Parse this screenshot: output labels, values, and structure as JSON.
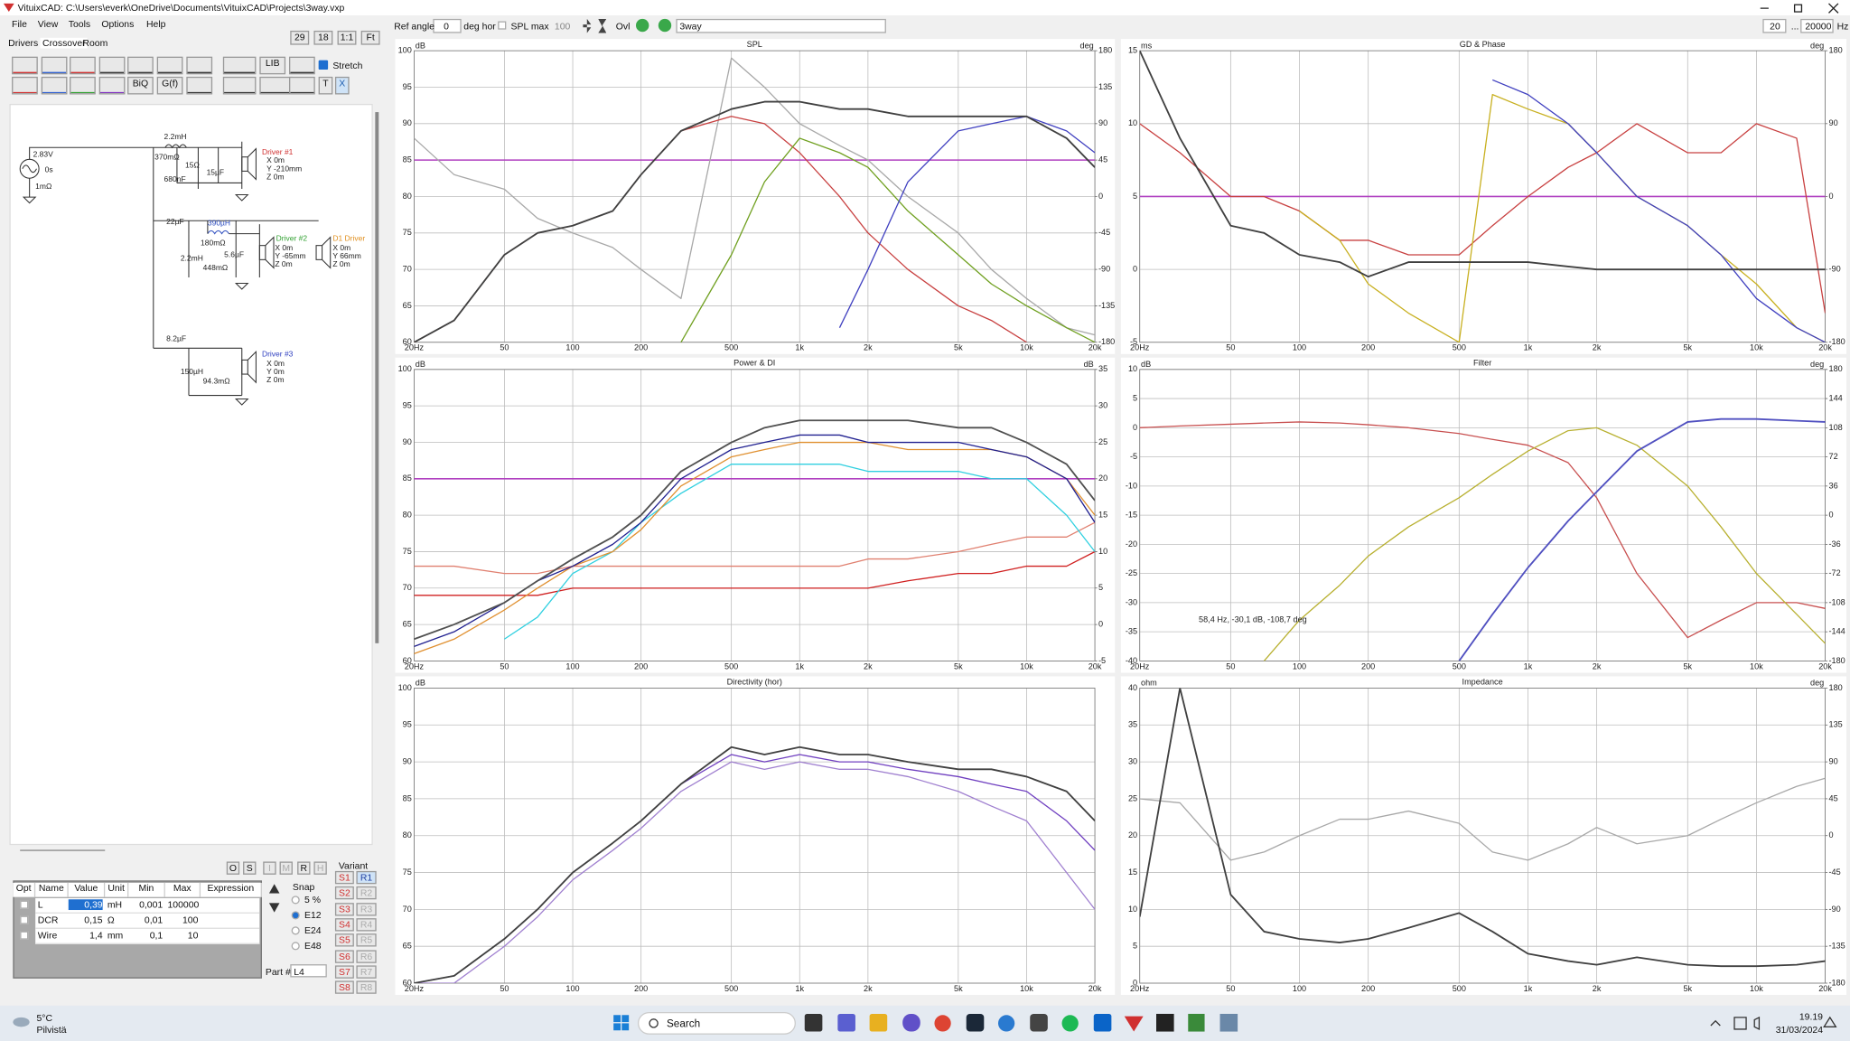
{
  "window": {
    "title": "VituixCAD: C:\\Users\\everk\\OneDrive\\Documents\\VituixCAD\\Projects\\3way.vxp"
  },
  "menu": [
    "File",
    "View",
    "Tools",
    "Options",
    "Help"
  ],
  "tabs": [
    "Drivers",
    "Crossover",
    "Room"
  ],
  "view_buttons": [
    "29",
    "18",
    "1:1",
    "Ft"
  ],
  "toolbar": {
    "ref_angle_label": "Ref angle",
    "ref_angle": "0",
    "ref_angle_unit": "deg hor",
    "spl_max_label": "SPL max",
    "spl_max": "100",
    "ovl": "Ovl",
    "project": "3way",
    "f_min": "20",
    "f_sep": "...",
    "f_max": "20000",
    "f_unit": "Hz"
  },
  "tool_buttons": [
    "LIB",
    "BiQ",
    "G(f)",
    "T",
    "X"
  ],
  "stretch": "Stretch",
  "schematic": {
    "labels": [
      "2.83V",
      "0s",
      "1mΩ",
      "2.2mH",
      "370mΩ",
      "680nF",
      "15Ω",
      "15µF",
      "Driver #1",
      "X 0m",
      "Y -210mm",
      "Z 0m",
      "22µF",
      "390µH",
      "180mΩ",
      "2.2mH",
      "448mΩ",
      "5.6µF",
      "Driver #2",
      "X 0m",
      "Y -65mm",
      "Z 0m",
      "D1 Driver",
      "X 0m",
      "Y 66mm",
      "Z 0m",
      "8.2µF",
      "150µH",
      "94.3mΩ",
      "Driver #3",
      "X 0m",
      "Y 0m",
      "Z 0m"
    ]
  },
  "part_buttons": [
    "O",
    "S",
    "I",
    "M",
    "R",
    "H"
  ],
  "parts_table": {
    "header": [
      "Opt",
      "Name",
      "Value",
      "Unit",
      "Min",
      "Max",
      "Expression"
    ],
    "rows": [
      [
        "L",
        "0,39",
        "mH",
        "0,001",
        "100000"
      ],
      [
        "DCR",
        "0,15",
        "Ω",
        "0,01",
        "100"
      ],
      [
        "Wire",
        "1,4",
        "mm",
        "0,1",
        "10"
      ]
    ]
  },
  "snap": {
    "label": "Snap",
    "options": [
      "5 %",
      "E12",
      "E24",
      "E48"
    ]
  },
  "variant": {
    "label": "Variant",
    "s": [
      "S1",
      "S2",
      "S3",
      "S4",
      "S5",
      "S6",
      "S7",
      "S8"
    ],
    "r": [
      "R1",
      "R2",
      "R3",
      "R4",
      "R5",
      "R6",
      "R7",
      "R8"
    ]
  },
  "part_no": {
    "label": "Part #",
    "value": "L4"
  },
  "charts": [
    {
      "title": "SPL",
      "y_unit": "dB",
      "y2_unit": "deg",
      "xlim": [
        20,
        20000
      ],
      "xticks": [
        {
          "value": 20,
          "label": "20Hz"
        },
        50,
        100,
        200,
        500,
        {
          "value": 1000,
          "label": "1k"
        },
        {
          "value": 2000,
          "label": "2k"
        },
        {
          "value": 5000,
          "label": "5k"
        },
        {
          "value": 10000,
          "label": "10k"
        },
        {
          "value": 20000,
          "label": "20k"
        }
      ],
      "ylim": [
        60,
        100
      ],
      "yticks": [
        60,
        65,
        70,
        75,
        80,
        85,
        90,
        95,
        100
      ],
      "y2lim": [
        -180,
        180
      ],
      "y2ticks": [
        -180,
        -135,
        -90,
        -45,
        0,
        45,
        90,
        135,
        180
      ],
      "reference": 85,
      "reference_color": "#b040c0",
      "x": [
        20,
        30,
        50,
        70,
        100,
        150,
        200,
        300,
        500,
        700,
        1000,
        1500,
        2000,
        3000,
        5000,
        7000,
        10000,
        15000,
        20000
      ],
      "series": [
        {
          "color": "#a8a8a8",
          "axis": "y2",
          "values": [
            72,
            27,
            9,
            -27,
            -45,
            -63,
            -90,
            -126,
            171,
            135,
            90,
            63,
            45,
            0,
            -45,
            -90,
            -126,
            -162,
            -171
          ]
        },
        {
          "color": "#c84040",
          "values": [
            60,
            63,
            72,
            75,
            76,
            78,
            83,
            89,
            91,
            90,
            86,
            80,
            75,
            70,
            65,
            63,
            60,
            null,
            null
          ]
        },
        {
          "color": "#70a020",
          "values": [
            null,
            null,
            null,
            null,
            null,
            null,
            null,
            60,
            72,
            82,
            88,
            86,
            84,
            78,
            72,
            68,
            65,
            62,
            60
          ]
        },
        {
          "color": "#4040c0",
          "values": [
            null,
            null,
            null,
            null,
            null,
            null,
            null,
            null,
            null,
            null,
            null,
            62,
            70,
            82,
            89,
            90,
            91,
            89,
            86
          ]
        },
        {
          "color": "#404040",
          "values": [
            60,
            63,
            72,
            75,
            76,
            78,
            83,
            89,
            92,
            93,
            93,
            92,
            92,
            91,
            91,
            91,
            91,
            88,
            84
          ]
        }
      ]
    },
    {
      "title": "GD & Phase",
      "y_unit": "ms",
      "y2_unit": "deg",
      "xlim": [
        20,
        20000
      ],
      "xticks": [
        {
          "value": 20,
          "label": "20Hz"
        },
        50,
        100,
        200,
        500,
        {
          "value": 1000,
          "label": "1k"
        },
        {
          "value": 2000,
          "label": "2k"
        },
        {
          "value": 5000,
          "label": "5k"
        },
        {
          "value": 10000,
          "label": "10k"
        },
        {
          "value": 20000,
          "label": "20k"
        }
      ],
      "ylim": [
        -5,
        15
      ],
      "yticks": [
        -5,
        0,
        5,
        10,
        15
      ],
      "y2lim": [
        -180,
        180
      ],
      "y2ticks": [
        -180,
        -90,
        0,
        90,
        180
      ],
      "reference": 5,
      "reference_color": "#b040c0",
      "x": [
        20,
        30,
        50,
        70,
        100,
        150,
        200,
        300,
        500,
        700,
        1000,
        1500,
        2000,
        3000,
        5000,
        7000,
        10000,
        15000,
        20000
      ],
      "series": [
        {
          "color": "#c84040",
          "values": [
            10,
            8,
            5,
            5,
            4,
            2,
            2,
            1,
            1,
            3,
            5,
            7,
            8,
            10,
            8,
            8,
            10,
            9,
            -3
          ]
        },
        {
          "color": "#c8b020",
          "values": [
            null,
            null,
            null,
            null,
            4,
            2,
            -1,
            -3,
            -5,
            12,
            11,
            10,
            8,
            5,
            3,
            1,
            -1,
            -4,
            -5
          ]
        },
        {
          "color": "#4040c0",
          "values": [
            null,
            null,
            null,
            null,
            null,
            null,
            null,
            null,
            null,
            13,
            12,
            10,
            8,
            5,
            3,
            1,
            -2,
            -4,
            -5
          ]
        },
        {
          "color": "#404040",
          "values": [
            15,
            9,
            3,
            2.5,
            1,
            0.5,
            -0.5,
            0.5,
            0.5,
            0.5,
            0.5,
            0.2,
            0,
            0,
            0,
            0,
            0,
            0,
            0
          ]
        }
      ]
    },
    {
      "title": "Power & DI",
      "y_unit": "dB",
      "y2_unit": "dB",
      "xlim": [
        20,
        20000
      ],
      "xticks": [
        {
          "value": 20,
          "label": "20Hz"
        },
        50,
        100,
        200,
        500,
        {
          "value": 1000,
          "label": "1k"
        },
        {
          "value": 2000,
          "label": "2k"
        },
        {
          "value": 5000,
          "label": "5k"
        },
        {
          "value": 10000,
          "label": "10k"
        },
        {
          "value": 20000,
          "label": "20k"
        }
      ],
      "ylim": [
        60,
        100
      ],
      "yticks": [
        60,
        65,
        70,
        75,
        80,
        85,
        90,
        95,
        100
      ],
      "y2lim": [
        -5,
        35
      ],
      "y2ticks": [
        -5,
        0,
        5,
        10,
        15,
        20,
        25,
        30,
        35
      ],
      "reference": 85,
      "reference_color": "#b040c0",
      "x": [
        20,
        30,
        50,
        70,
        100,
        150,
        200,
        300,
        500,
        700,
        1000,
        1500,
        2000,
        3000,
        5000,
        7000,
        10000,
        15000,
        20000
      ],
      "series": [
        {
          "color": "#e08070",
          "axis": "y2",
          "values": [
            8,
            8,
            7,
            7,
            8,
            8,
            8,
            8,
            8,
            8,
            8,
            8,
            9,
            9,
            10,
            11,
            12,
            12,
            14
          ]
        },
        {
          "color": "#d02020",
          "axis": "y2",
          "values": [
            4,
            4,
            4,
            4,
            5,
            5,
            5,
            5,
            5,
            5,
            5,
            5,
            5,
            6,
            7,
            7,
            8,
            8,
            10
          ]
        },
        {
          "color": "#30d0e0",
          "values": [
            null,
            null,
            63,
            66,
            72,
            75,
            79,
            83,
            87,
            87,
            87,
            87,
            86,
            86,
            86,
            85,
            85,
            80,
            75
          ]
        },
        {
          "color": "#e09030",
          "values": [
            61,
            63,
            67,
            70,
            73,
            75,
            78,
            84,
            88,
            89,
            90,
            90,
            90,
            89,
            89,
            89,
            88,
            85,
            80
          ]
        },
        {
          "color": "#202090",
          "values": [
            62,
            64,
            68,
            71,
            73,
            76,
            79,
            85,
            89,
            90,
            91,
            91,
            90,
            90,
            90,
            89,
            88,
            85,
            79
          ]
        },
        {
          "color": "#505050",
          "values": [
            63,
            65,
            68,
            71,
            74,
            77,
            80,
            86,
            90,
            92,
            93,
            93,
            93,
            93,
            92,
            92,
            90,
            87,
            82
          ]
        }
      ]
    },
    {
      "title": "Filter",
      "y_unit": "dB",
      "y2_unit": "deg",
      "xlim": [
        20,
        20000
      ],
      "xticks": [
        {
          "value": 20,
          "label": "20Hz"
        },
        50,
        100,
        200,
        500,
        {
          "value": 1000,
          "label": "1k"
        },
        {
          "value": 2000,
          "label": "2k"
        },
        {
          "value": 5000,
          "label": "5k"
        },
        {
          "value": 10000,
          "label": "10k"
        },
        {
          "value": 20000,
          "label": "20k"
        }
      ],
      "ylim": [
        -40,
        10
      ],
      "yticks": [
        -40,
        -35,
        -30,
        -25,
        -20,
        -15,
        -10,
        -5,
        0,
        5,
        10
      ],
      "y2lim": [
        -180,
        180
      ],
      "y2ticks": [
        -180,
        -144,
        -108,
        -72,
        -36,
        0,
        36,
        72,
        108,
        144,
        180
      ],
      "annotation": "58,4 Hz, -30,1 dB, -108,7 deg",
      "x": [
        20,
        30,
        50,
        70,
        100,
        150,
        200,
        300,
        500,
        700,
        1000,
        1500,
        2000,
        3000,
        5000,
        7000,
        10000,
        15000,
        20000
      ],
      "series": [
        {
          "color": "#c85050",
          "values": [
            0,
            0.3,
            0.6,
            0.8,
            1,
            0.8,
            0.5,
            0,
            -1,
            -2,
            -3,
            -6,
            -12,
            -25,
            -36,
            -33,
            -30,
            -30,
            -31
          ]
        },
        {
          "color": "#b8b030",
          "values": [
            null,
            null,
            null,
            -40,
            -33,
            -27,
            -22,
            -17,
            -12,
            -8,
            -4,
            -0.5,
            0,
            -3,
            -10,
            -17,
            -25,
            -32,
            -37
          ]
        },
        {
          "color": "#5050c0",
          "values": [
            null,
            null,
            null,
            null,
            null,
            null,
            null,
            null,
            -40,
            -32,
            -24,
            -16,
            -11,
            -4,
            1,
            1.5,
            1.5,
            1.2,
            1
          ]
        }
      ]
    },
    {
      "title": "Directivity (hor)",
      "y_unit": "dB",
      "xlim": [
        20,
        20000
      ],
      "xticks": [
        {
          "value": 20,
          "label": "20Hz"
        },
        50,
        100,
        200,
        500,
        {
          "value": 1000,
          "label": "1k"
        },
        {
          "value": 2000,
          "label": "2k"
        },
        {
          "value": 5000,
          "label": "5k"
        },
        {
          "value": 10000,
          "label": "10k"
        },
        {
          "value": 20000,
          "label": "20k"
        }
      ],
      "ylim": [
        60,
        100
      ],
      "yticks": [
        60,
        65,
        70,
        75,
        80,
        85,
        90,
        95,
        100
      ],
      "x": [
        20,
        30,
        50,
        70,
        100,
        150,
        200,
        300,
        500,
        700,
        1000,
        1500,
        2000,
        3000,
        5000,
        7000,
        10000,
        15000,
        20000
      ],
      "series": [
        {
          "color": "#a080d0",
          "values": [
            60,
            60,
            65,
            69,
            74,
            78,
            81,
            86,
            90,
            89,
            90,
            89,
            89,
            88,
            86,
            84,
            82,
            75,
            70
          ]
        },
        {
          "color": "#7040c0",
          "values": [
            60,
            61,
            66,
            70,
            75,
            79,
            82,
            87,
            91,
            90,
            91,
            90,
            90,
            89,
            88,
            87,
            86,
            82,
            78
          ]
        },
        {
          "color": "#404040",
          "values": [
            60,
            61,
            66,
            70,
            75,
            79,
            82,
            87,
            92,
            91,
            92,
            91,
            91,
            90,
            89,
            89,
            88,
            86,
            82
          ]
        }
      ]
    },
    {
      "title": "Impedance",
      "y_unit": "ohm",
      "y2_unit": "deg",
      "xlim": [
        20,
        20000
      ],
      "xticks": [
        {
          "value": 20,
          "label": "20Hz"
        },
        50,
        100,
        200,
        500,
        {
          "value": 1000,
          "label": "1k"
        },
        {
          "value": 2000,
          "label": "2k"
        },
        {
          "value": 5000,
          "label": "5k"
        },
        {
          "value": 10000,
          "label": "10k"
        },
        {
          "value": 20000,
          "label": "20k"
        }
      ],
      "ylim": [
        0,
        40
      ],
      "yticks": [
        0,
        5,
        10,
        15,
        20,
        25,
        30,
        35,
        40
      ],
      "y2lim": [
        -180,
        180
      ],
      "y2ticks": [
        -180,
        -135,
        -90,
        -45,
        0,
        45,
        90,
        135,
        180
      ],
      "x": [
        20,
        30,
        50,
        70,
        100,
        150,
        200,
        300,
        500,
        700,
        1000,
        1500,
        2000,
        3000,
        5000,
        7000,
        10000,
        15000,
        20000
      ],
      "series": [
        {
          "color": "#a8a8a8",
          "axis": "y2",
          "values": [
            45,
            40,
            -30,
            -20,
            0,
            20,
            20,
            30,
            15,
            -20,
            -30,
            -10,
            10,
            -10,
            0,
            20,
            40,
            60,
            70
          ]
        },
        {
          "color": "#404040",
          "values": [
            9,
            40,
            12,
            7,
            6,
            5.5,
            6,
            7.5,
            9.5,
            7,
            4,
            3,
            2.5,
            3.5,
            2.5,
            2.3,
            2.3,
            2.5,
            3
          ]
        }
      ]
    }
  ],
  "taskbar": {
    "temperature": "5°C",
    "weather": "Pilvistä",
    "search": "Search",
    "time": "19.19",
    "date": "31/03/2024"
  }
}
